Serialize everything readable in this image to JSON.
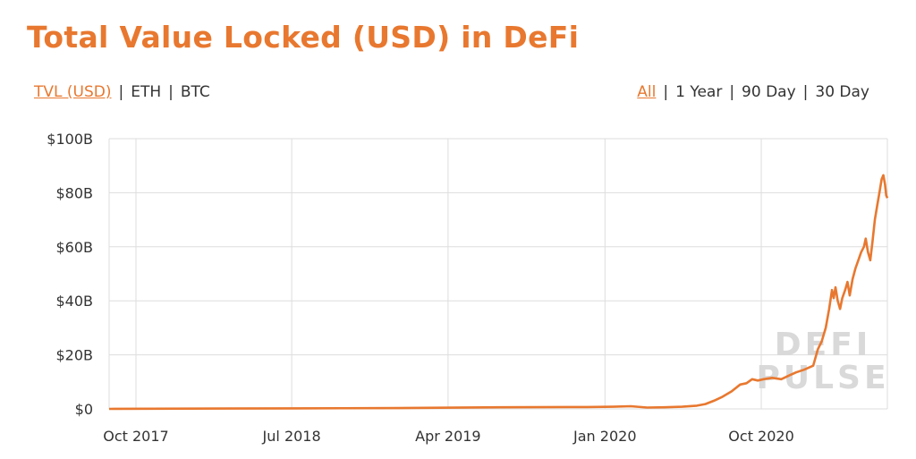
{
  "title": "Total Value Locked (USD) in DeFi",
  "metric_options": [
    {
      "label": "TVL (USD)",
      "active": true
    },
    {
      "label": "ETH",
      "active": false
    },
    {
      "label": "BTC",
      "active": false
    }
  ],
  "range_options": [
    {
      "label": "All",
      "active": true
    },
    {
      "label": "1 Year",
      "active": false
    },
    {
      "label": "90 Day",
      "active": false
    },
    {
      "label": "30 Day",
      "active": false
    }
  ],
  "watermark": [
    "DEFI",
    "PULSE"
  ],
  "colors": {
    "accent": "#e8782f",
    "line": "#e8782f",
    "grid": "#dddddd"
  },
  "chart_data": {
    "type": "line",
    "title": "Total Value Locked (USD) in DeFi",
    "xlabel": "",
    "ylabel": "",
    "ylim": [
      0,
      100
    ],
    "xlim": [
      "2017-08-15",
      "2021-05-10"
    ],
    "y_ticks": [
      {
        "value": 0,
        "label": "$0"
      },
      {
        "value": 20,
        "label": "$20B"
      },
      {
        "value": 40,
        "label": "$40B"
      },
      {
        "value": 60,
        "label": "$60B"
      },
      {
        "value": 80,
        "label": "$80B"
      },
      {
        "value": 100,
        "label": "$100B"
      }
    ],
    "x_ticks": [
      {
        "date": "2017-10-01",
        "label": "Oct 2017"
      },
      {
        "date": "2018-07-01",
        "label": "Jul 2018"
      },
      {
        "date": "2019-04-01",
        "label": "Apr 2019"
      },
      {
        "date": "2020-01-01",
        "label": "Jan 2020"
      },
      {
        "date": "2020-10-01",
        "label": "Oct 2020"
      }
    ],
    "grid": true,
    "series": [
      {
        "points": [
          [
            "2017-08-15",
            0.0
          ],
          [
            "2018-01-01",
            0.1
          ],
          [
            "2018-07-01",
            0.2
          ],
          [
            "2019-01-01",
            0.3
          ],
          [
            "2019-07-01",
            0.6
          ],
          [
            "2019-12-01",
            0.7
          ],
          [
            "2020-01-15",
            0.8
          ],
          [
            "2020-02-15",
            1.0
          ],
          [
            "2020-03-15",
            0.5
          ],
          [
            "2020-04-15",
            0.6
          ],
          [
            "2020-05-15",
            0.8
          ],
          [
            "2020-06-10",
            1.2
          ],
          [
            "2020-06-25",
            1.8
          ],
          [
            "2020-07-10",
            3.0
          ],
          [
            "2020-07-25",
            4.5
          ],
          [
            "2020-08-10",
            6.5
          ],
          [
            "2020-08-25",
            9.0
          ],
          [
            "2020-09-05",
            9.5
          ],
          [
            "2020-09-15",
            11.0
          ],
          [
            "2020-09-25",
            10.5
          ],
          [
            "2020-10-05",
            11.0
          ],
          [
            "2020-10-20",
            11.5
          ],
          [
            "2020-11-05",
            11.0
          ],
          [
            "2020-11-20",
            12.5
          ],
          [
            "2020-12-01",
            13.5
          ],
          [
            "2020-12-15",
            14.5
          ],
          [
            "2020-12-31",
            16.0
          ],
          [
            "2021-01-08",
            22.0
          ],
          [
            "2021-01-15",
            25.0
          ],
          [
            "2021-01-22",
            30.0
          ],
          [
            "2021-01-28",
            37.0
          ],
          [
            "2021-02-02",
            44.0
          ],
          [
            "2021-02-05",
            41.0
          ],
          [
            "2021-02-08",
            45.0
          ],
          [
            "2021-02-12",
            40.0
          ],
          [
            "2021-02-16",
            37.0
          ],
          [
            "2021-02-20",
            41.0
          ],
          [
            "2021-02-25",
            44.0
          ],
          [
            "2021-03-01",
            47.0
          ],
          [
            "2021-03-05",
            42.0
          ],
          [
            "2021-03-10",
            48.0
          ],
          [
            "2021-03-15",
            52.0
          ],
          [
            "2021-03-20",
            55.0
          ],
          [
            "2021-03-25",
            58.0
          ],
          [
            "2021-03-30",
            60.0
          ],
          [
            "2021-04-02",
            63.0
          ],
          [
            "2021-04-06",
            58.0
          ],
          [
            "2021-04-10",
            55.0
          ],
          [
            "2021-04-14",
            62.0
          ],
          [
            "2021-04-18",
            70.0
          ],
          [
            "2021-04-22",
            75.0
          ],
          [
            "2021-04-26",
            80.0
          ],
          [
            "2021-04-30",
            85.0
          ],
          [
            "2021-05-03",
            86.5
          ],
          [
            "2021-05-06",
            83.0
          ],
          [
            "2021-05-08",
            79.0
          ],
          [
            "2021-05-10",
            78.0
          ]
        ]
      }
    ]
  }
}
